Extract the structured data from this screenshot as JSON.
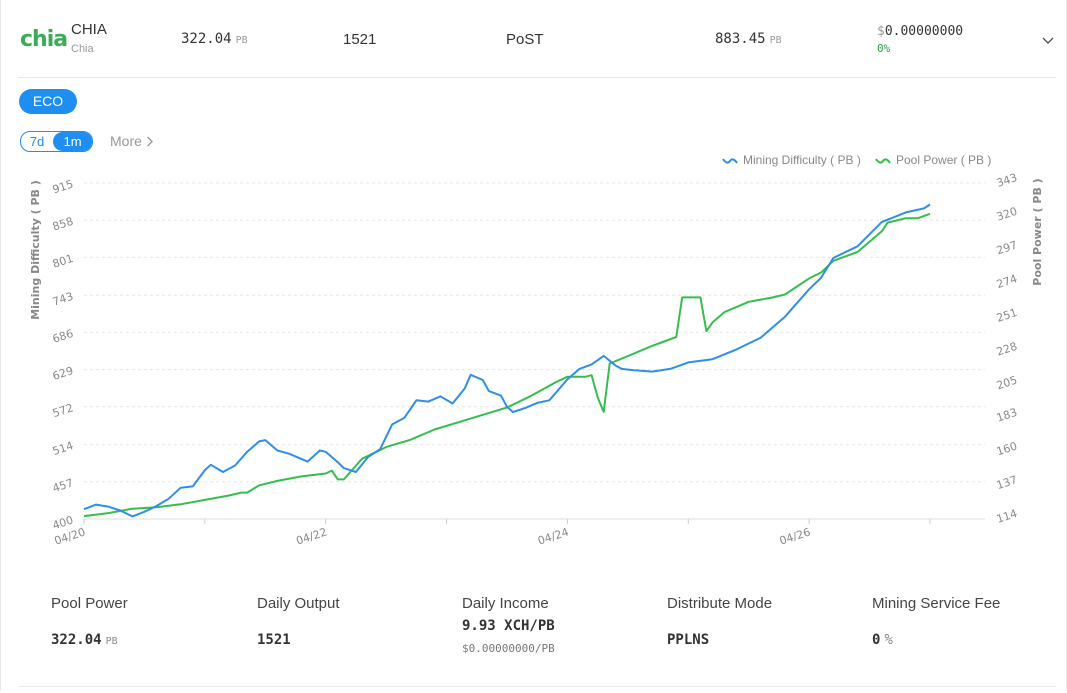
{
  "header": {
    "coin": "CHIA",
    "coin_sub": "Chia",
    "logo": "chia",
    "difficulty": "322.04",
    "difficulty_unit": "PB",
    "blocks": "1521",
    "algorithm": "PoST",
    "network": "883.45",
    "network_unit": "PB",
    "price_symbol": "$",
    "price": "0.00000000",
    "change": "0%"
  },
  "tabs": {
    "eco": "ECO",
    "range_7d": "7d",
    "range_1m": "1m",
    "more": "More"
  },
  "legend": {
    "difficulty": "Mining Difficulty ( PB )",
    "power": "Pool Power ( PB )"
  },
  "colors": {
    "difficulty": "#2f8fe6",
    "power": "#36bd4f",
    "accent": "#1f8ef1"
  },
  "chart_data": {
    "type": "line",
    "ylabel_left": "Mining Difficulty ( PB )",
    "ylabel_right": "Pool Power ( PB )",
    "left_ticks": [
      400,
      457,
      514,
      572,
      629,
      686,
      743,
      801,
      858,
      915
    ],
    "right_ticks": [
      114,
      137,
      160,
      183,
      205,
      228,
      251,
      274,
      297,
      320,
      343
    ],
    "ylim_left": [
      400,
      915
    ],
    "ylim_right": [
      114,
      343
    ],
    "x_ticks": [
      "04/20",
      "04/22",
      "04/24",
      "04/26"
    ],
    "x_range_days": [
      0,
      7
    ],
    "grid": true,
    "legend_position": "top-right",
    "series": [
      {
        "name": "Mining Difficulty ( PB )",
        "axis": "left",
        "points": [
          [
            0,
            415
          ],
          [
            0.1,
            422
          ],
          [
            0.2,
            419
          ],
          [
            0.3,
            413
          ],
          [
            0.4,
            404
          ],
          [
            0.5,
            411
          ],
          [
            0.6,
            420
          ],
          [
            0.7,
            431
          ],
          [
            0.8,
            448
          ],
          [
            0.9,
            450
          ],
          [
            1.0,
            475
          ],
          [
            1.05,
            483
          ],
          [
            1.15,
            472
          ],
          [
            1.25,
            482
          ],
          [
            1.35,
            503
          ],
          [
            1.45,
            519
          ],
          [
            1.5,
            521
          ],
          [
            1.6,
            505
          ],
          [
            1.7,
            500
          ],
          [
            1.75,
            496
          ],
          [
            1.85,
            488
          ],
          [
            1.95,
            505
          ],
          [
            2.0,
            503
          ],
          [
            2.1,
            487
          ],
          [
            2.15,
            478
          ],
          [
            2.25,
            472
          ],
          [
            2.35,
            495
          ],
          [
            2.45,
            507
          ],
          [
            2.55,
            545
          ],
          [
            2.65,
            555
          ],
          [
            2.75,
            582
          ],
          [
            2.85,
            580
          ],
          [
            2.95,
            588
          ],
          [
            3.05,
            577
          ],
          [
            3.15,
            600
          ],
          [
            3.2,
            621
          ],
          [
            3.3,
            613
          ],
          [
            3.35,
            596
          ],
          [
            3.45,
            589
          ],
          [
            3.5,
            572
          ],
          [
            3.55,
            564
          ],
          [
            3.65,
            570
          ],
          [
            3.75,
            578
          ],
          [
            3.85,
            582
          ],
          [
            4.0,
            614
          ],
          [
            4.1,
            630
          ],
          [
            4.2,
            637
          ],
          [
            4.3,
            650
          ],
          [
            4.4,
            635
          ],
          [
            4.45,
            630
          ],
          [
            4.55,
            628
          ],
          [
            4.7,
            626
          ],
          [
            4.85,
            630
          ],
          [
            5.0,
            640
          ],
          [
            5.2,
            645
          ],
          [
            5.4,
            660
          ],
          [
            5.6,
            678
          ],
          [
            5.8,
            710
          ],
          [
            6.0,
            752
          ],
          [
            6.1,
            770
          ],
          [
            6.2,
            800
          ],
          [
            6.4,
            818
          ],
          [
            6.6,
            855
          ],
          [
            6.8,
            870
          ],
          [
            6.95,
            876
          ],
          [
            7.0,
            882
          ]
        ]
      },
      {
        "name": "Pool Power ( PB )",
        "axis": "right",
        "points": [
          [
            0,
            116
          ],
          [
            0.2,
            118
          ],
          [
            0.4,
            121
          ],
          [
            0.6,
            122
          ],
          [
            0.8,
            124
          ],
          [
            1.0,
            127
          ],
          [
            1.2,
            130
          ],
          [
            1.3,
            132
          ],
          [
            1.35,
            132
          ],
          [
            1.45,
            137
          ],
          [
            1.6,
            140
          ],
          [
            1.8,
            143
          ],
          [
            2.0,
            145
          ],
          [
            2.05,
            147
          ],
          [
            2.1,
            141
          ],
          [
            2.15,
            141
          ],
          [
            2.3,
            155
          ],
          [
            2.5,
            163
          ],
          [
            2.7,
            168
          ],
          [
            2.9,
            175
          ],
          [
            3.1,
            180
          ],
          [
            3.3,
            185
          ],
          [
            3.5,
            190
          ],
          [
            3.7,
            198
          ],
          [
            3.9,
            207
          ],
          [
            4.0,
            211
          ],
          [
            4.15,
            211
          ],
          [
            4.2,
            212
          ],
          [
            4.25,
            197
          ],
          [
            4.3,
            187
          ],
          [
            4.35,
            220
          ],
          [
            4.5,
            225
          ],
          [
            4.7,
            232
          ],
          [
            4.8,
            235
          ],
          [
            4.9,
            238
          ],
          [
            4.95,
            265
          ],
          [
            5.1,
            265
          ],
          [
            5.15,
            242
          ],
          [
            5.2,
            248
          ],
          [
            5.3,
            255
          ],
          [
            5.5,
            262
          ],
          [
            5.7,
            265
          ],
          [
            5.8,
            267
          ],
          [
            6.0,
            278
          ],
          [
            6.1,
            282
          ],
          [
            6.2,
            290
          ],
          [
            6.4,
            296
          ],
          [
            6.6,
            310
          ],
          [
            6.65,
            316
          ],
          [
            6.8,
            319
          ],
          [
            6.9,
            319
          ],
          [
            7.0,
            322
          ]
        ]
      }
    ]
  },
  "stats": {
    "pool_power_label": "Pool Power",
    "pool_power": "322.04",
    "pool_power_unit": "PB",
    "daily_output_label": "Daily Output",
    "daily_output": "1521",
    "daily_income_label": "Daily Income",
    "daily_income": "9.93 XCH/PB",
    "daily_income_usd": "$0.00000000/PB",
    "distribute_label": "Distribute Mode",
    "distribute": "PPLNS",
    "fee_label": "Mining Service Fee",
    "fee": "0",
    "fee_unit": "%"
  }
}
